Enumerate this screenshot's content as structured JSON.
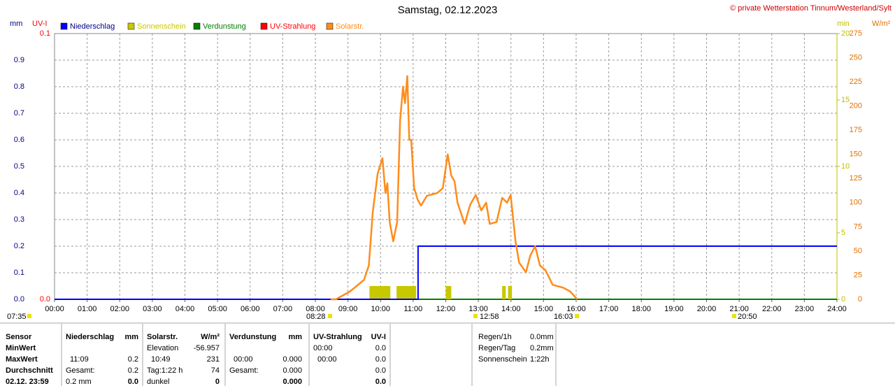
{
  "chart_data": {
    "type": "line",
    "title": "Samstag, 02.12.2023",
    "credit": "© private Wetterstation Tinnum/Westerland/Sylt",
    "y_label": "mm",
    "y2_label": "UV-I",
    "y3_label": "min",
    "y4_label": "W/m²",
    "xlim": [
      0,
      24
    ],
    "xticks": [
      {
        "value": 0,
        "label": "00:00"
      },
      {
        "value": 1,
        "label": "01:00"
      },
      {
        "value": 2,
        "label": "02:00"
      },
      {
        "value": 3,
        "label": "03:00"
      },
      {
        "value": 4,
        "label": "04:00"
      },
      {
        "value": 5,
        "label": "05:00"
      },
      {
        "value": 6,
        "label": "06:00"
      },
      {
        "value": 7,
        "label": "07:00"
      },
      {
        "value": 8,
        "label": "08:00"
      },
      {
        "value": 9,
        "label": "09:00"
      },
      {
        "value": 10,
        "label": "10:00"
      },
      {
        "value": 11,
        "label": "11:00"
      },
      {
        "value": 12,
        "label": "12:00"
      },
      {
        "value": 13,
        "label": "13:00"
      },
      {
        "value": 14,
        "label": "14:00"
      },
      {
        "value": 15,
        "label": "15:00"
      },
      {
        "value": 16,
        "label": "16:00"
      },
      {
        "value": 17,
        "label": "17:00"
      },
      {
        "value": 18,
        "label": "18:00"
      },
      {
        "value": 19,
        "label": "19:00"
      },
      {
        "value": 20,
        "label": "20:00"
      },
      {
        "value": 21,
        "label": "21:00"
      },
      {
        "value": 22,
        "label": "22:00"
      },
      {
        "value": 23,
        "label": "23:00"
      },
      {
        "value": 24,
        "label": "24:00"
      }
    ],
    "ylim": [
      0,
      1
    ],
    "yticks": [
      {
        "value": 0,
        "label": "0.0"
      },
      0.1,
      0.2,
      0.3,
      0.4,
      0.5,
      0.6,
      0.7,
      0.8,
      0.9
    ],
    "y2lim": [
      0,
      0.1
    ],
    "y2ticks": [
      {
        "value": 0,
        "label": "0.0"
      },
      0.1
    ],
    "y3lim": [
      0,
      20
    ],
    "y3ticks": [
      0,
      5,
      10,
      15,
      20
    ],
    "y4lim": [
      0,
      275
    ],
    "y4ticks": [
      0,
      25,
      50,
      75,
      100,
      125,
      150,
      175,
      200,
      225,
      250,
      275
    ],
    "grid": true,
    "series": [
      {
        "name": "Niederschlag",
        "color": "#0000ff",
        "type": "line",
        "axis": "y",
        "x": [
          0,
          11.15,
          11.15,
          24
        ],
        "values": [
          0,
          0,
          0.2,
          0.2
        ]
      },
      {
        "name": "Sonnenschein",
        "color": "#c8c800",
        "type": "bar",
        "axis": "y3",
        "x": [
          9.66,
          10.49,
          12.0,
          13.73,
          13.91
        ],
        "x_end": [
          10.3,
          11.09,
          12.17,
          13.84,
          14.03
        ],
        "values": [
          1,
          1,
          1,
          1,
          1
        ]
      },
      {
        "name": "Verdunstung",
        "color": "#008000",
        "type": "line",
        "axis": "y",
        "x": [
          11.15,
          24
        ],
        "values": [
          0,
          0
        ]
      },
      {
        "name": "UV-Strahlung",
        "color": "#ff0000",
        "type": "line",
        "axis": "y2",
        "x": [
          0,
          0
        ],
        "values": [
          0,
          0
        ]
      },
      {
        "name": "Solarstr.",
        "color": "#ff8c1a",
        "type": "line",
        "axis": "y4",
        "x": [
          8.47,
          8.63,
          9.06,
          9.49,
          9.64,
          9.76,
          9.91,
          10.06,
          10.15,
          10.21,
          10.28,
          10.39,
          10.45,
          10.51,
          10.6,
          10.69,
          10.75,
          10.82,
          10.88,
          10.94,
          11.03,
          11.14,
          11.24,
          11.42,
          11.74,
          11.91,
          12.06,
          12.17,
          12.27,
          12.36,
          12.58,
          12.75,
          12.92,
          13.09,
          13.24,
          13.35,
          13.56,
          13.73,
          13.88,
          13.99,
          14.14,
          14.25,
          14.46,
          14.59,
          14.74,
          14.89,
          15.06,
          15.28,
          15.6,
          15.82,
          16.03
        ],
        "values": [
          0,
          0,
          8,
          20,
          35,
          90,
          130,
          146,
          110,
          120,
          80,
          60,
          70,
          80,
          185,
          220,
          203,
          231,
          165,
          165,
          115,
          103,
          97,
          107,
          110,
          115,
          150,
          128,
          122,
          100,
          78,
          98,
          108,
          92,
          100,
          78,
          80,
          105,
          100,
          108,
          60,
          38,
          28,
          45,
          55,
          35,
          30,
          15,
          12,
          8,
          0
        ]
      }
    ],
    "annotations": [
      "07:35",
      "08:28",
      "12:58",
      "16:03",
      "20:50"
    ]
  },
  "table": {
    "row_labels": [
      "Sensor",
      "MinWert",
      "MaxWert",
      "Durchschnitt",
      "02.12. 23:59"
    ],
    "groups": [
      {
        "name": "Niederschlag",
        "unit": "mm",
        "cells": [
          null,
          [
            "11:09",
            "0.2"
          ],
          [
            "Gesamt:",
            "0.2"
          ],
          [
            "0.2 mm",
            "0.0"
          ]
        ]
      },
      {
        "name": "Solarstr.",
        "unit": "W/m²",
        "cells": [
          [
            "Elevation",
            "-56.957"
          ],
          [
            "10:49",
            "231"
          ],
          [
            "Tag:1:22 h",
            "74"
          ],
          [
            "dunkel",
            "0"
          ]
        ]
      },
      {
        "name": "Verdunstung",
        "unit": "mm",
        "cells": [
          null,
          [
            "00:00",
            "0.000"
          ],
          [
            "Gesamt:",
            "0.000"
          ],
          [
            null,
            "0.000"
          ]
        ]
      },
      {
        "name": "UV-Strahlung",
        "unit": "UV-I",
        "cells": [
          [
            "00:00",
            "0.0"
          ],
          [
            "00:00",
            "0.0"
          ],
          [
            null,
            "0.0"
          ],
          [
            null,
            "0.0"
          ]
        ]
      }
    ]
  },
  "summary": [
    [
      "Regen/1h",
      "0.0mm"
    ],
    [
      "Regen/Tag",
      "0.2mm"
    ],
    [
      "Sonnenschein",
      "1:22h"
    ]
  ]
}
